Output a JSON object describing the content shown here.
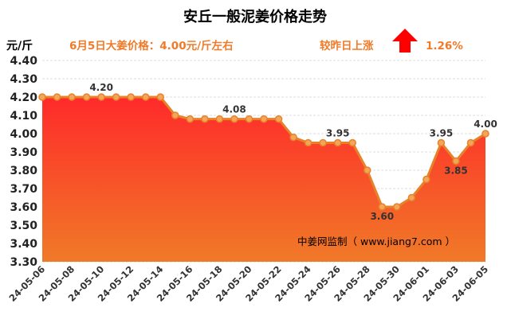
{
  "chart_data": {
    "type": "area",
    "title": "安丘一般泥姜价格走势",
    "unit_label": "元/斤",
    "headline_price": "6月5日大姜价格：4.00元/斤左右",
    "change_label": "较昨日上涨",
    "change_percent": "1.26%",
    "credit": "中姜网监制（ www.jiang7.com ）",
    "ylim": [
      3.3,
      4.4
    ],
    "y_ticks": [
      "3.30",
      "3.40",
      "3.50",
      "3.60",
      "3.70",
      "3.80",
      "3.90",
      "4.00",
      "4.10",
      "4.20",
      "4.30",
      "4.40"
    ],
    "x_tick_labels": [
      "24-05-06",
      "24-05-08",
      "24-05-10",
      "24-05-12",
      "24-05-14",
      "24-05-16",
      "24-05-18",
      "24-05-20",
      "24-05-22",
      "24-05-24",
      "24-05-26",
      "24-05-28",
      "24-05-30",
      "24-06-01",
      "24-06-03",
      "24-06-05"
    ],
    "values": [
      4.2,
      4.2,
      4.2,
      4.2,
      4.2,
      4.2,
      4.2,
      4.2,
      4.2,
      4.1,
      4.08,
      4.08,
      4.08,
      4.08,
      4.08,
      4.08,
      4.08,
      3.98,
      3.95,
      3.95,
      3.95,
      3.95,
      3.8,
      3.6,
      3.6,
      3.65,
      3.75,
      3.95,
      3.85,
      3.95,
      4.0
    ],
    "data_labels": [
      {
        "index": 4,
        "text": "4.20"
      },
      {
        "index": 13,
        "text": "4.08"
      },
      {
        "index": 20,
        "text": "3.95"
      },
      {
        "index": 23,
        "text": "3.60"
      },
      {
        "index": 27,
        "text": "3.95"
      },
      {
        "index": 28,
        "text": "3.85"
      },
      {
        "index": 30,
        "text": "4.00"
      }
    ],
    "grid": true,
    "colors": {
      "line": "#e8822a",
      "marker_fill": "#f2a65a",
      "area_top": "#ff2a2a",
      "area_bottom": "#f07a28",
      "info_text": "#f07a28",
      "arrow": "#ff0000"
    }
  }
}
